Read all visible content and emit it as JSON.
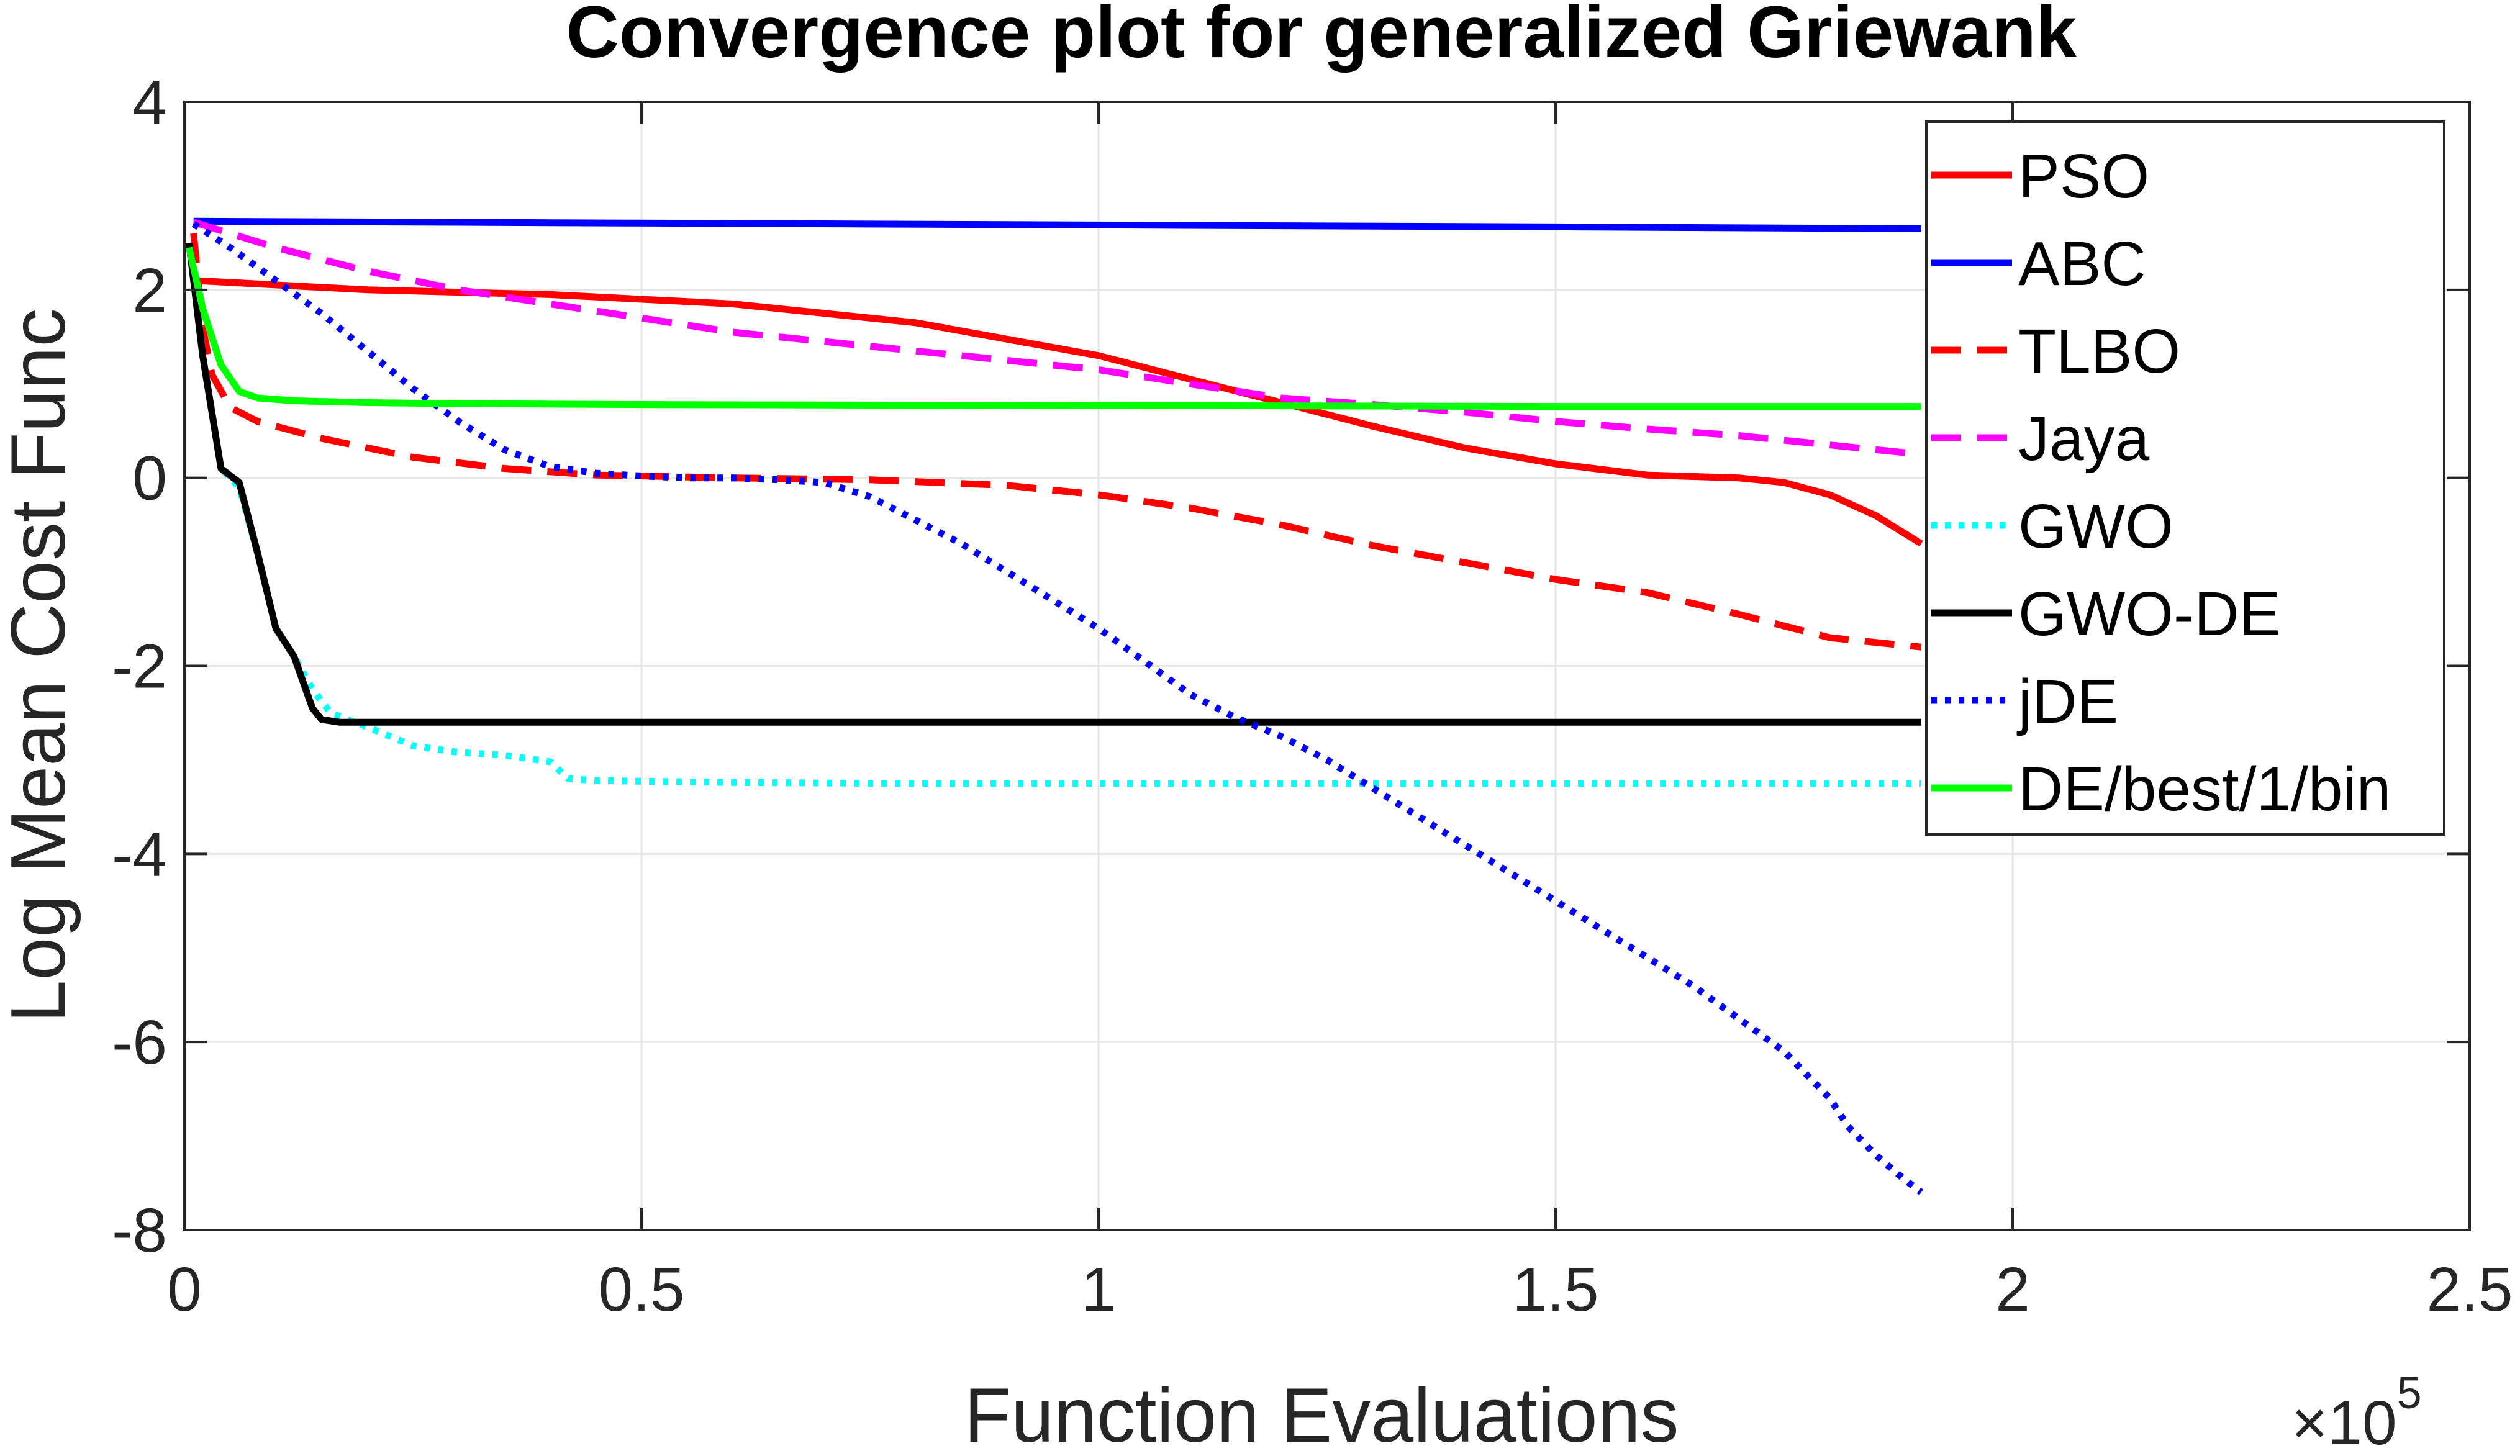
{
  "chart_data": {
    "type": "line",
    "title": "Convergence plot for generalized Griewank",
    "xlabel": "Function Evaluations",
    "ylabel": "Log Mean Cost Func",
    "x_exponent_label": "×10",
    "x_exponent_power": "5",
    "xlim": [
      0,
      2.5
    ],
    "ylim": [
      -8,
      4
    ],
    "x_ticks": [
      0,
      0.5,
      1,
      1.5,
      2,
      2.5
    ],
    "x_tick_labels": [
      "0",
      "0.5",
      "1",
      "1.5",
      "2",
      "2.5"
    ],
    "y_ticks": [
      -8,
      -6,
      -4,
      -2,
      0,
      2,
      4
    ],
    "y_tick_labels": [
      "-8",
      "-6",
      "-4",
      "-2",
      "0",
      "2",
      "4"
    ],
    "grid": true,
    "legend_position": "top-right",
    "series": [
      {
        "name": "PSO",
        "color": "#ff0000",
        "style": "solid",
        "x": [
          0.01,
          0.2,
          0.4,
          0.6,
          0.8,
          1.0,
          1.1,
          1.2,
          1.3,
          1.4,
          1.5,
          1.6,
          1.7,
          1.75,
          1.8,
          1.85,
          1.9
        ],
        "y": [
          2.1,
          2.0,
          1.95,
          1.85,
          1.65,
          1.3,
          1.05,
          0.8,
          0.55,
          0.32,
          0.15,
          0.03,
          0.0,
          -0.05,
          -0.18,
          -0.4,
          -0.7
        ]
      },
      {
        "name": "ABC",
        "color": "#0000ff",
        "style": "solid",
        "x": [
          0.01,
          0.5,
          1.0,
          1.5,
          1.9
        ],
        "y": [
          2.73,
          2.71,
          2.69,
          2.67,
          2.65
        ]
      },
      {
        "name": "TLBO",
        "color": "#ff0000",
        "style": "dashed",
        "x": [
          0.01,
          0.02,
          0.03,
          0.05,
          0.08,
          0.15,
          0.25,
          0.35,
          0.45,
          0.6,
          0.75,
          0.9,
          1.0,
          1.1,
          1.2,
          1.3,
          1.4,
          1.5,
          1.6,
          1.7,
          1.8,
          1.9
        ],
        "y": [
          2.6,
          1.6,
          1.1,
          0.75,
          0.6,
          0.42,
          0.22,
          0.1,
          0.03,
          0.0,
          -0.02,
          -0.08,
          -0.18,
          -0.32,
          -0.5,
          -0.72,
          -0.9,
          -1.08,
          -1.22,
          -1.45,
          -1.7,
          -1.8
        ]
      },
      {
        "name": "Jaya",
        "color": "#ff00ff",
        "style": "dashed",
        "x": [
          0.01,
          0.05,
          0.1,
          0.2,
          0.3,
          0.4,
          0.5,
          0.6,
          0.7,
          0.8,
          0.9,
          1.0,
          1.1,
          1.2,
          1.3,
          1.4,
          1.5,
          1.6,
          1.7,
          1.8,
          1.9
        ],
        "y": [
          2.72,
          2.6,
          2.45,
          2.2,
          2.0,
          1.85,
          1.7,
          1.55,
          1.45,
          1.35,
          1.25,
          1.15,
          1.0,
          0.85,
          0.78,
          0.7,
          0.6,
          0.52,
          0.45,
          0.35,
          0.25
        ]
      },
      {
        "name": "GWO",
        "color": "#00ffff",
        "style": "dotted",
        "x": [
          0.005,
          0.02,
          0.04,
          0.06,
          0.08,
          0.1,
          0.12,
          0.14,
          0.16,
          0.2,
          0.25,
          0.3,
          0.35,
          0.4,
          0.42,
          0.45,
          0.6,
          0.8,
          1.0,
          1.5,
          1.9
        ],
        "y": [
          2.5,
          1.3,
          0.1,
          -0.1,
          -0.8,
          -1.6,
          -1.9,
          -2.25,
          -2.5,
          -2.65,
          -2.85,
          -2.92,
          -2.95,
          -3.02,
          -3.2,
          -3.22,
          -3.24,
          -3.25,
          -3.25,
          -3.25,
          -3.25
        ]
      },
      {
        "name": "GWO-DE",
        "color": "#000000",
        "style": "solid",
        "x": [
          0.005,
          0.02,
          0.04,
          0.06,
          0.08,
          0.1,
          0.12,
          0.14,
          0.15,
          0.17,
          0.2,
          0.5,
          1.0,
          1.5,
          1.9
        ],
        "y": [
          2.5,
          1.3,
          0.1,
          -0.05,
          -0.8,
          -1.6,
          -1.9,
          -2.45,
          -2.57,
          -2.6,
          -2.6,
          -2.6,
          -2.6,
          -2.6,
          -2.6
        ]
      },
      {
        "name": "jDE",
        "color": "#0000ff",
        "style": "dotted",
        "x": [
          0.01,
          0.05,
          0.1,
          0.15,
          0.2,
          0.25,
          0.3,
          0.35,
          0.4,
          0.45,
          0.5,
          0.55,
          0.6,
          0.65,
          0.7,
          0.75,
          0.8,
          0.85,
          0.9,
          0.95,
          1.0,
          1.05,
          1.1,
          1.15,
          1.2,
          1.25,
          1.3,
          1.35,
          1.4,
          1.45,
          1.5,
          1.55,
          1.6,
          1.65,
          1.7,
          1.75,
          1.8,
          1.82,
          1.85,
          1.88,
          1.9
        ],
        "y": [
          2.7,
          2.45,
          2.1,
          1.75,
          1.35,
          0.95,
          0.6,
          0.3,
          0.12,
          0.05,
          0.02,
          0.0,
          0.0,
          -0.02,
          -0.05,
          -0.2,
          -0.45,
          -0.7,
          -1.0,
          -1.3,
          -1.6,
          -1.95,
          -2.3,
          -2.55,
          -2.75,
          -3.0,
          -3.3,
          -3.6,
          -3.9,
          -4.2,
          -4.5,
          -4.8,
          -5.1,
          -5.4,
          -5.75,
          -6.1,
          -6.6,
          -6.9,
          -7.2,
          -7.45,
          -7.6
        ]
      },
      {
        "name": "DE/best/1/bin",
        "color": "#00ff00",
        "style": "solid",
        "x": [
          0.005,
          0.02,
          0.04,
          0.06,
          0.08,
          0.12,
          0.2,
          0.3,
          0.5,
          1.0,
          1.5,
          1.9
        ],
        "y": [
          2.45,
          1.8,
          1.2,
          0.92,
          0.85,
          0.82,
          0.8,
          0.79,
          0.78,
          0.77,
          0.76,
          0.76
        ]
      }
    ]
  }
}
